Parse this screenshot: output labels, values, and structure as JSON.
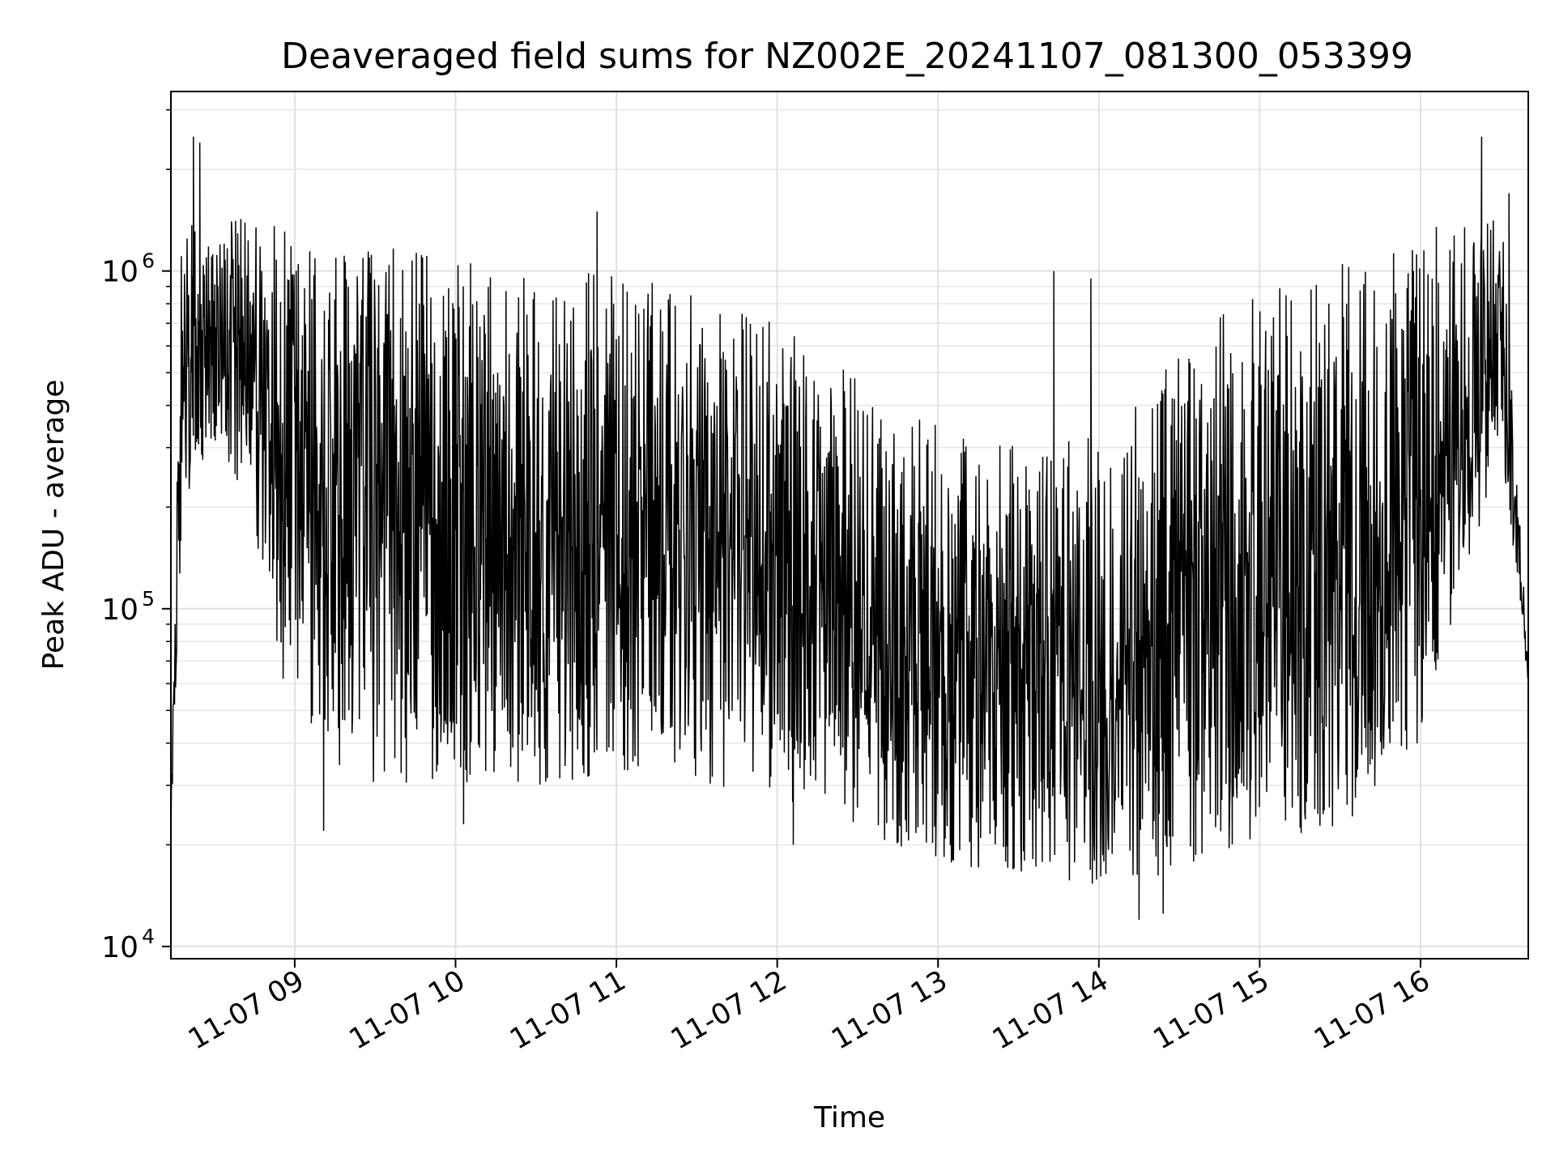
{
  "chart_data": {
    "type": "line",
    "title": "Deaveraged field sums for NZ002E_20241107_081300_053399",
    "xlabel": "Time",
    "ylabel": "Peak ADU - average",
    "yscale": "log",
    "grid": true,
    "grid_minor": true,
    "legend": "none",
    "line_color": "#000000",
    "xlim": [
      8.23,
      16.67
    ],
    "ylim": [
      9200,
      3400000
    ],
    "x_unit": "hours since 2024-11-07 00:00 (tick labels show MM-DD HH)",
    "x_ticks": [
      {
        "value": 9,
        "label": "11-07 09"
      },
      {
        "value": 10,
        "label": "11-07 10"
      },
      {
        "value": 11,
        "label": "11-07 11"
      },
      {
        "value": 12,
        "label": "11-07 12"
      },
      {
        "value": 13,
        "label": "11-07 13"
      },
      {
        "value": 14,
        "label": "11-07 14"
      },
      {
        "value": 15,
        "label": "11-07 15"
      },
      {
        "value": 16,
        "label": "11-07 16"
      }
    ],
    "y_ticks": [
      {
        "value": 10000,
        "base": "10",
        "exp": "4"
      },
      {
        "value": 100000,
        "base": "10",
        "exp": "5"
      },
      {
        "value": 1000000,
        "base": "10",
        "exp": "6"
      }
    ],
    "envelope": {
      "x": [
        8.23,
        8.3,
        8.5,
        8.7,
        9.0,
        9.5,
        10.0,
        10.5,
        11.0,
        11.5,
        12.0,
        12.5,
        13.0,
        13.5,
        14.0,
        14.5,
        15.0,
        15.5,
        16.0,
        16.5,
        16.67
      ],
      "low": [
        20000,
        200000,
        300000,
        200000,
        40000,
        30000,
        30000,
        30000,
        32000,
        30000,
        28000,
        22000,
        18000,
        16000,
        15000,
        16000,
        20000,
        22000,
        40000,
        300000,
        60000
      ],
      "high": [
        25000,
        1500000,
        1300000,
        1500000,
        1300000,
        1200000,
        1100000,
        1050000,
        1000000,
        900000,
        700000,
        500000,
        350000,
        300000,
        350000,
        600000,
        900000,
        1100000,
        1300000,
        1600000,
        70000
      ]
    },
    "spikes": [
      {
        "x": 8.37,
        "y": 2500000
      },
      {
        "x": 8.41,
        "y": 2400000
      },
      {
        "x": 9.18,
        "y": 22000
      },
      {
        "x": 10.05,
        "y": 23000
      },
      {
        "x": 10.88,
        "y": 1500000
      },
      {
        "x": 12.1,
        "y": 20000
      },
      {
        "x": 13.72,
        "y": 1000000
      },
      {
        "x": 13.95,
        "y": 950000
      },
      {
        "x": 14.25,
        "y": 12000
      },
      {
        "x": 14.4,
        "y": 12500
      },
      {
        "x": 16.38,
        "y": 2500000
      },
      {
        "x": 16.55,
        "y": 1700000
      }
    ]
  }
}
